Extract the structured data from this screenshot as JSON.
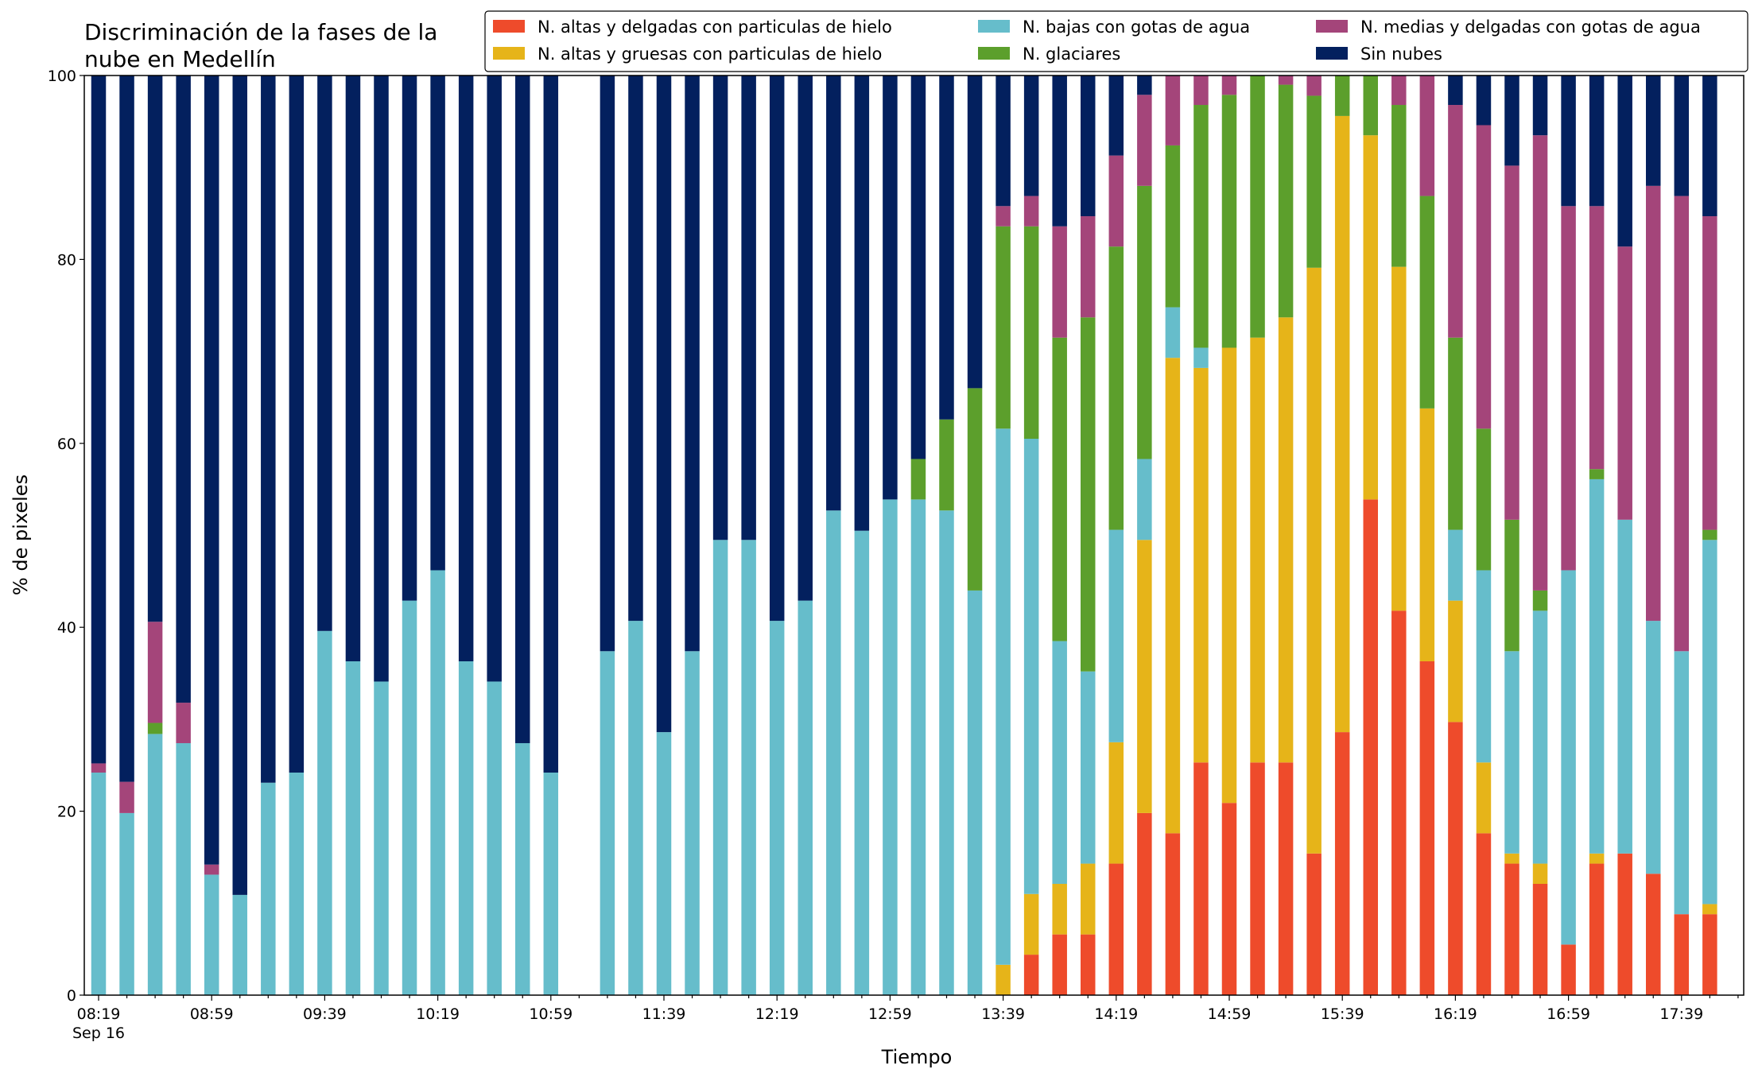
{
  "chart_data": {
    "type": "bar",
    "stacked": true,
    "title_line1": "Discriminación de la fases de la",
    "title_line2": "nube en Medellín",
    "xlabel": "Tiempo",
    "ylabel": "% de pixeles",
    "ylim": [
      0,
      100
    ],
    "yticks": [
      "0",
      "20",
      "40",
      "60",
      "80",
      "100"
    ],
    "xtick_labels": [
      "08:19",
      "08:59",
      "09:39",
      "10:19",
      "10:59",
      "11:39",
      "12:19",
      "12:59",
      "13:39",
      "14:19",
      "14:59",
      "15:39",
      "16:19",
      "16:59",
      "17:39"
    ],
    "xtick_sublabel": "Sep 16",
    "legend_position": "top-right",
    "series": [
      {
        "name": "N. altas y delgadas con particulas de hielo",
        "color": "#EE4B2B"
      },
      {
        "name": "N. altas y gruesas con particulas de hielo",
        "color": "#E6B419"
      },
      {
        "name": "N. bajas con gotas de agua",
        "color": "#66BDCB"
      },
      {
        "name": "N. glaciares",
        "color": "#5C9F2C"
      },
      {
        "name": "N. medias y delgadas con gotas de agua",
        "color": "#A4457A"
      },
      {
        "name": "Sin nubes",
        "color": "#03205E"
      }
    ],
    "slot_count": 59,
    "bars": [
      {
        "slot": 0,
        "values": [
          0,
          0,
          24.2,
          0,
          1.0,
          74.8
        ]
      },
      {
        "slot": 1,
        "values": [
          0,
          0,
          19.8,
          0,
          3.4,
          76.8
        ]
      },
      {
        "slot": 2,
        "values": [
          0,
          0,
          28.4,
          1.2,
          11.0,
          59.4
        ]
      },
      {
        "slot": 3,
        "values": [
          0,
          0,
          27.4,
          0,
          4.4,
          68.2
        ]
      },
      {
        "slot": 4,
        "values": [
          0,
          0,
          13.1,
          0,
          1.1,
          85.8
        ]
      },
      {
        "slot": 5,
        "values": [
          0,
          0,
          10.9,
          0,
          0,
          89.1
        ]
      },
      {
        "slot": 6,
        "values": [
          0,
          0,
          23.1,
          0,
          0,
          76.9
        ]
      },
      {
        "slot": 7,
        "values": [
          0,
          0,
          24.2,
          0,
          0,
          75.8
        ]
      },
      {
        "slot": 8,
        "values": [
          0,
          0,
          39.6,
          0,
          0,
          60.4
        ]
      },
      {
        "slot": 9,
        "values": [
          0,
          0,
          36.3,
          0,
          0,
          63.7
        ]
      },
      {
        "slot": 10,
        "values": [
          0,
          0,
          34.1,
          0,
          0,
          65.9
        ]
      },
      {
        "slot": 11,
        "values": [
          0,
          0,
          42.9,
          0,
          0,
          57.1
        ]
      },
      {
        "slot": 12,
        "values": [
          0,
          0,
          46.2,
          0,
          0,
          53.8
        ]
      },
      {
        "slot": 13,
        "values": [
          0,
          0,
          36.3,
          0,
          0,
          63.7
        ]
      },
      {
        "slot": 14,
        "values": [
          0,
          0,
          34.1,
          0,
          0,
          65.9
        ]
      },
      {
        "slot": 15,
        "values": [
          0,
          0,
          27.4,
          0,
          0,
          72.6
        ]
      },
      {
        "slot": 16,
        "values": [
          0,
          0,
          24.2,
          0,
          0,
          75.8
        ]
      },
      {
        "slot": 18,
        "values": [
          0,
          0,
          37.4,
          0,
          0,
          62.6
        ]
      },
      {
        "slot": 19,
        "values": [
          0,
          0,
          40.7,
          0,
          0,
          59.3
        ]
      },
      {
        "slot": 20,
        "values": [
          0,
          0,
          28.6,
          0,
          0,
          71.4
        ]
      },
      {
        "slot": 21,
        "values": [
          0,
          0,
          37.4,
          0,
          0,
          62.6
        ]
      },
      {
        "slot": 22,
        "values": [
          0,
          0,
          49.5,
          0,
          0,
          50.5
        ]
      },
      {
        "slot": 23,
        "values": [
          0,
          0,
          49.5,
          0,
          0,
          50.5
        ]
      },
      {
        "slot": 24,
        "values": [
          0,
          0,
          40.7,
          0,
          0,
          59.3
        ]
      },
      {
        "slot": 25,
        "values": [
          0,
          0,
          42.9,
          0,
          0,
          57.1
        ]
      },
      {
        "slot": 26,
        "values": [
          0,
          0,
          52.7,
          0,
          0,
          47.3
        ]
      },
      {
        "slot": 27,
        "values": [
          0,
          0,
          50.5,
          0,
          0,
          49.5
        ]
      },
      {
        "slot": 28,
        "values": [
          0,
          0,
          53.9,
          0,
          0,
          46.1
        ]
      },
      {
        "slot": 29,
        "values": [
          0,
          0,
          53.9,
          4.4,
          0,
          41.7
        ]
      },
      {
        "slot": 30,
        "values": [
          0,
          0,
          52.7,
          9.9,
          0,
          37.4
        ]
      },
      {
        "slot": 31,
        "values": [
          0,
          0,
          44.0,
          22.0,
          0,
          34.0
        ]
      },
      {
        "slot": 32,
        "values": [
          0,
          3.3,
          58.3,
          22.0,
          2.2,
          14.2
        ]
      },
      {
        "slot": 33,
        "values": [
          4.4,
          6.6,
          49.5,
          23.1,
          3.3,
          13.1
        ]
      },
      {
        "slot": 34,
        "values": [
          6.6,
          5.5,
          26.4,
          33.0,
          12.1,
          16.4
        ]
      },
      {
        "slot": 35,
        "values": [
          6.6,
          7.7,
          20.9,
          38.5,
          11.0,
          15.3
        ]
      },
      {
        "slot": 36,
        "values": [
          14.3,
          13.2,
          23.1,
          30.8,
          9.9,
          8.7
        ]
      },
      {
        "slot": 37,
        "values": [
          19.8,
          29.7,
          8.8,
          29.7,
          9.9,
          2.1
        ]
      },
      {
        "slot": 38,
        "values": [
          17.6,
          51.7,
          5.5,
          17.6,
          7.6,
          0
        ]
      },
      {
        "slot": 39,
        "values": [
          25.3,
          42.9,
          2.2,
          26.4,
          3.2,
          0
        ]
      },
      {
        "slot": 40,
        "values": [
          20.9,
          49.5,
          0,
          27.5,
          2.1,
          0
        ]
      },
      {
        "slot": 41,
        "values": [
          25.3,
          46.2,
          0,
          28.5,
          0,
          0
        ]
      },
      {
        "slot": 42,
        "values": [
          25.3,
          48.4,
          0,
          25.3,
          1.0,
          0
        ]
      },
      {
        "slot": 43,
        "values": [
          15.4,
          63.7,
          0,
          18.7,
          2.2,
          0
        ]
      },
      {
        "slot": 44,
        "values": [
          28.6,
          67.0,
          0,
          4.4,
          0,
          0
        ]
      },
      {
        "slot": 45,
        "values": [
          53.9,
          39.6,
          0,
          6.5,
          0,
          0
        ]
      },
      {
        "slot": 46,
        "values": [
          41.8,
          37.4,
          0,
          17.6,
          3.2,
          0
        ]
      },
      {
        "slot": 47,
        "values": [
          36.3,
          27.5,
          0,
          23.1,
          13.1,
          0
        ]
      },
      {
        "slot": 48,
        "values": [
          29.7,
          13.2,
          7.7,
          20.9,
          25.3,
          3.2
        ]
      },
      {
        "slot": 49,
        "values": [
          17.6,
          7.7,
          20.9,
          15.4,
          33.0,
          5.4
        ]
      },
      {
        "slot": 50,
        "values": [
          14.3,
          1.1,
          22.0,
          14.3,
          38.5,
          9.8
        ]
      },
      {
        "slot": 51,
        "values": [
          12.1,
          2.2,
          27.5,
          2.2,
          49.5,
          6.5
        ]
      },
      {
        "slot": 52,
        "values": [
          5.5,
          0,
          40.7,
          0,
          39.6,
          14.2
        ]
      },
      {
        "slot": 53,
        "values": [
          14.3,
          1.1,
          40.7,
          1.1,
          28.6,
          14.2
        ]
      },
      {
        "slot": 54,
        "values": [
          15.4,
          0,
          36.3,
          0,
          29.7,
          18.6
        ]
      },
      {
        "slot": 55,
        "values": [
          13.2,
          0,
          27.5,
          0,
          47.3,
          12.0
        ]
      },
      {
        "slot": 56,
        "values": [
          8.8,
          0,
          28.6,
          0,
          49.5,
          13.1
        ]
      },
      {
        "slot": 57,
        "values": [
          8.8,
          1.1,
          39.6,
          1.1,
          34.1,
          15.3
        ]
      }
    ]
  }
}
